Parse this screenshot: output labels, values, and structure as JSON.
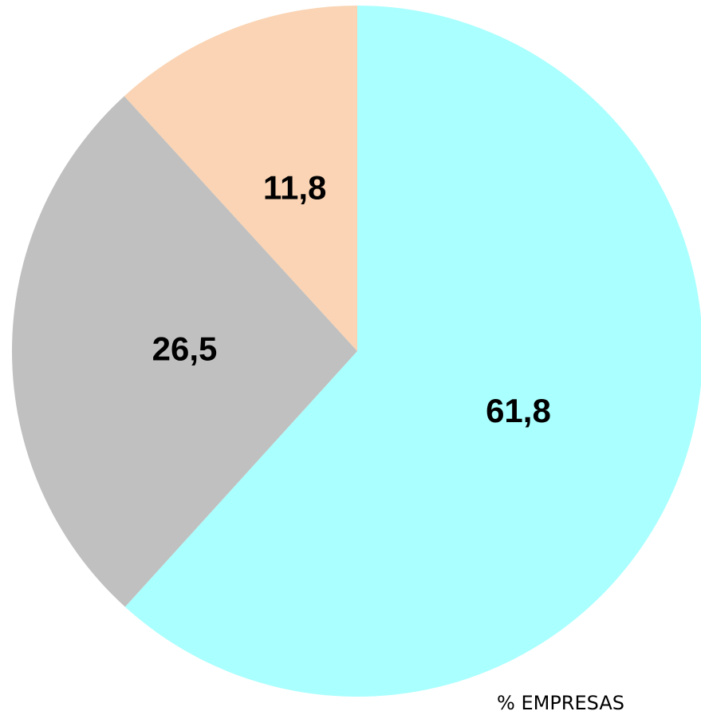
{
  "chart_data": {
    "type": "pie",
    "title": "% EMPRESAS",
    "categories": [
      null,
      null,
      null
    ],
    "values": [
      61.8,
      26.5,
      11.8
    ],
    "value_labels": [
      "61,8",
      "26,5",
      "11,8"
    ],
    "colors": [
      "#aaffff",
      "#c0c0c0",
      "#fad4b4"
    ]
  }
}
